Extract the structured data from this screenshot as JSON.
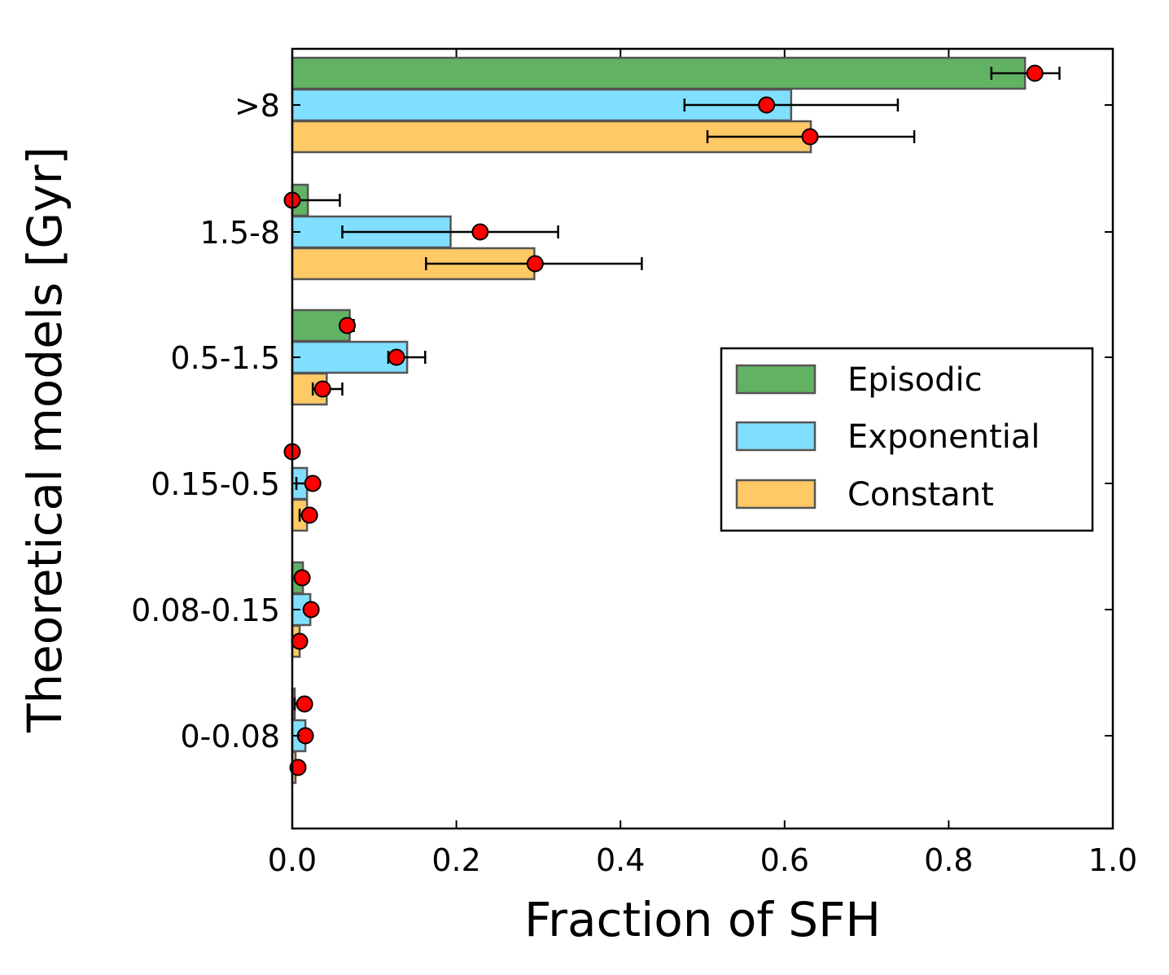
{
  "chart_data": {
    "type": "bar",
    "orientation": "horizontal",
    "xlabel": "Fraction of SFH",
    "ylabel": "Theoretical models [Gyr]",
    "xlim": [
      0.0,
      1.0
    ],
    "x_ticks": [
      0.0,
      0.2,
      0.4,
      0.6,
      0.8,
      1.0
    ],
    "x_tick_labels": [
      "0.0",
      "0.2",
      "0.4",
      "0.6",
      "0.8",
      "1.0"
    ],
    "categories": [
      ">8",
      "1.5-8",
      "0.5-1.5",
      "0.15-0.5",
      "0.08-0.15",
      "0-0.08"
    ],
    "legend_position": "center-right",
    "grid": false,
    "series": [
      {
        "name": "Episodic",
        "color": "#62b264",
        "values": [
          0.893,
          0.019,
          0.07,
          0.0,
          0.013,
          0.003
        ],
        "markers": [
          0.905,
          0.0,
          0.067,
          0.0,
          0.012,
          0.015
        ],
        "errors": [
          [
            0.053,
            0.03
          ],
          [
            0.0,
            0.058
          ],
          [
            0.005,
            0.008
          ],
          [
            0.0,
            0.0
          ],
          [
            0.0,
            0.0
          ],
          [
            0.012,
            0.0
          ]
        ]
      },
      {
        "name": "Exponential",
        "color": "#80dfff",
        "values": [
          0.608,
          0.193,
          0.14,
          0.018,
          0.022,
          0.016
        ],
        "markers": [
          0.578,
          0.229,
          0.127,
          0.025,
          0.023,
          0.016
        ],
        "errors": [
          [
            0.1,
            0.16
          ],
          [
            0.168,
            0.095
          ],
          [
            0.01,
            0.035
          ],
          [
            0.02,
            0.0
          ],
          [
            0.0,
            0.0
          ],
          [
            0.0,
            0.0
          ]
        ]
      },
      {
        "name": "Constant",
        "color": "#ffc966",
        "values": [
          0.632,
          0.295,
          0.042,
          0.018,
          0.009,
          0.004
        ],
        "markers": [
          0.631,
          0.296,
          0.037,
          0.021,
          0.009,
          0.007
        ],
        "errors": [
          [
            0.125,
            0.127
          ],
          [
            0.133,
            0.13
          ],
          [
            0.012,
            0.024
          ],
          [
            0.012,
            0.0
          ],
          [
            0.0,
            0.0
          ],
          [
            0.0,
            0.0
          ]
        ]
      }
    ]
  }
}
